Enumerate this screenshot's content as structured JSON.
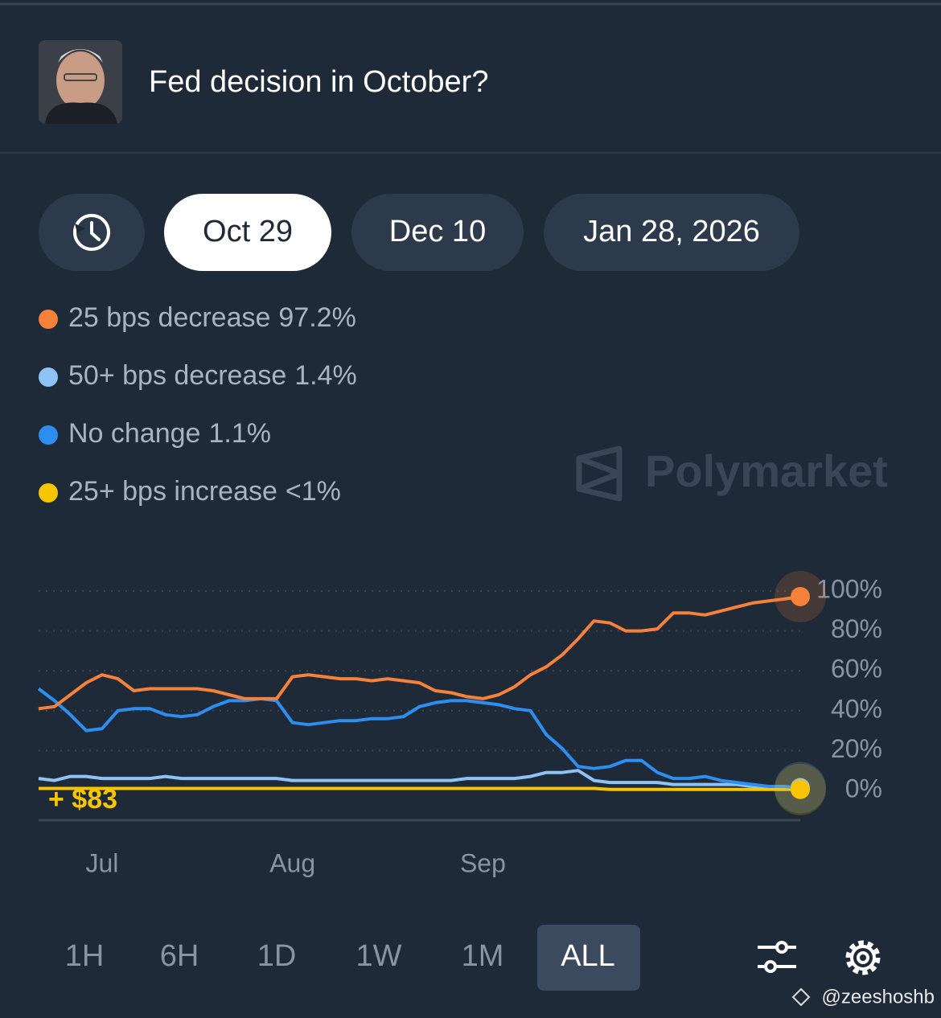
{
  "header": {
    "title": "Fed decision in October?"
  },
  "date_tabs": [
    "Oct 29",
    "Dec 10",
    "Jan 28, 2026"
  ],
  "watermark": "Polymarket",
  "chart_data": {
    "type": "line",
    "categories": [
      null,
      null,
      null,
      null,
      "Jul",
      null,
      null,
      null,
      null,
      null,
      null,
      null,
      null,
      null,
      null,
      null,
      "Aug",
      null,
      null,
      null,
      null,
      null,
      null,
      null,
      null,
      null,
      null,
      null,
      "Sep",
      null,
      null,
      null,
      null,
      null,
      null,
      null,
      null,
      null,
      null,
      null,
      null,
      null,
      null,
      null,
      null,
      null,
      null,
      null,
      null
    ],
    "series": [
      {
        "name": "25 bps decrease",
        "current_label": "97.2%",
        "color": "#f5813a",
        "values": [
          41,
          42,
          48,
          54,
          58,
          56,
          50,
          51,
          51,
          51,
          51,
          50,
          48,
          46,
          46,
          46,
          57,
          58,
          57,
          56,
          56,
          55,
          56,
          55,
          54,
          50,
          49,
          47,
          46,
          48,
          52,
          58,
          62,
          68,
          76,
          85,
          84,
          80,
          80,
          81,
          89,
          89,
          88,
          90,
          92,
          94,
          95,
          96,
          97.2
        ]
      },
      {
        "name": "50+ bps decrease",
        "current_label": "1.4%",
        "color": "#8fc3f5",
        "values": [
          6,
          5,
          7,
          7,
          6,
          6,
          6,
          6,
          7,
          6,
          6,
          6,
          6,
          6,
          6,
          6,
          5,
          5,
          5,
          5,
          5,
          5,
          5,
          5,
          5,
          5,
          5,
          6,
          6,
          6,
          6,
          7,
          9,
          9,
          10,
          5,
          4,
          4,
          4,
          4,
          3,
          3,
          3,
          3,
          3,
          2,
          2,
          1.5,
          1.4
        ]
      },
      {
        "name": "No change",
        "current_label": "1.1%",
        "color": "#2d8ef0",
        "values": [
          51,
          45,
          38,
          30,
          31,
          40,
          41,
          41,
          38,
          37,
          38,
          42,
          45,
          45,
          46,
          45,
          34,
          33,
          34,
          35,
          35,
          36,
          36,
          37,
          42,
          44,
          45,
          45,
          44,
          43,
          41,
          40,
          28,
          21,
          12,
          11,
          12,
          15,
          15,
          9,
          6,
          6,
          7,
          5,
          4,
          3,
          2,
          2,
          1.1
        ]
      },
      {
        "name": "25+ bps increase",
        "current_label": "<1%",
        "color": "#f7c500",
        "values": [
          1,
          1,
          1,
          1,
          1,
          1,
          1,
          1,
          1,
          1,
          1,
          1,
          1,
          1,
          1,
          1,
          1,
          1,
          1,
          1,
          1,
          1,
          1,
          1,
          1,
          1,
          1,
          1,
          1,
          1,
          1,
          1,
          1,
          1,
          1,
          1,
          0.5,
          0.5,
          0.5,
          0.5,
          0.5,
          0.5,
          0.5,
          0.5,
          0.5,
          0.5,
          0.5,
          0.5,
          0.5
        ]
      }
    ],
    "ylim": [
      0,
      100
    ],
    "yticks": [
      {
        "value": 0,
        "label": "0%"
      },
      {
        "value": 20,
        "label": "20%"
      },
      {
        "value": 40,
        "label": "40%"
      },
      {
        "value": 60,
        "label": "60%"
      },
      {
        "value": 80,
        "label": "80%"
      },
      {
        "value": 100,
        "label": "100%"
      }
    ],
    "grid": true,
    "annotation": "+ $83"
  },
  "range_buttons": [
    "1H",
    "6H",
    "1D",
    "1W",
    "1M",
    "ALL"
  ],
  "active_range": 5,
  "credit": "@zeeshoshb"
}
